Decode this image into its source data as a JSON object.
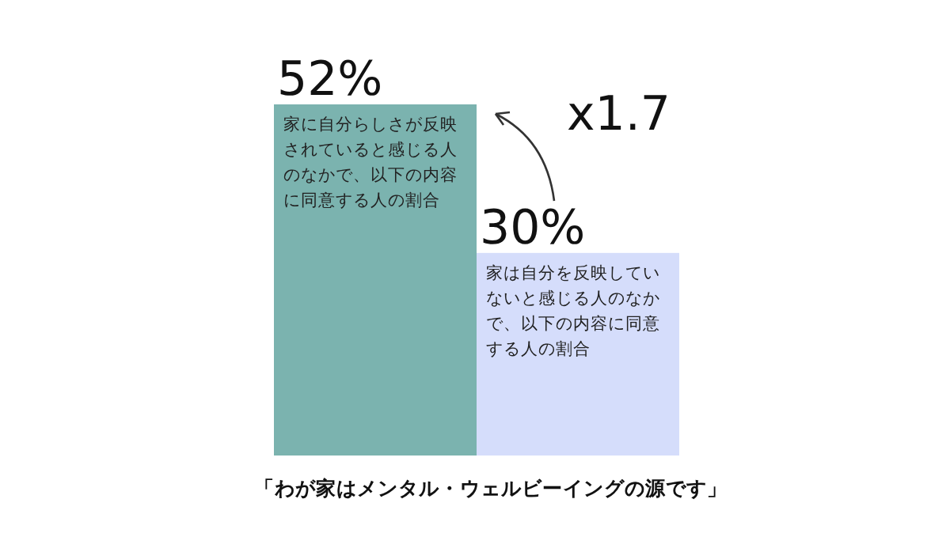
{
  "chart_data": {
    "type": "bar",
    "title": "「わが家はメンタル・ウェルビーイングの源です」",
    "categories": [
      "家に自分らしさが反映されていると感じる人のなかで、以下の内容に同意する人の割合",
      "家は自分を反映していないと感じる人のなかで、以下の内容に同意する人の割合"
    ],
    "values": [
      52,
      30
    ],
    "colors": [
      "#7bb3af",
      "#d5ddfb"
    ],
    "value_labels": [
      "52%",
      "30%"
    ],
    "annotations": [
      "x1.7"
    ]
  }
}
